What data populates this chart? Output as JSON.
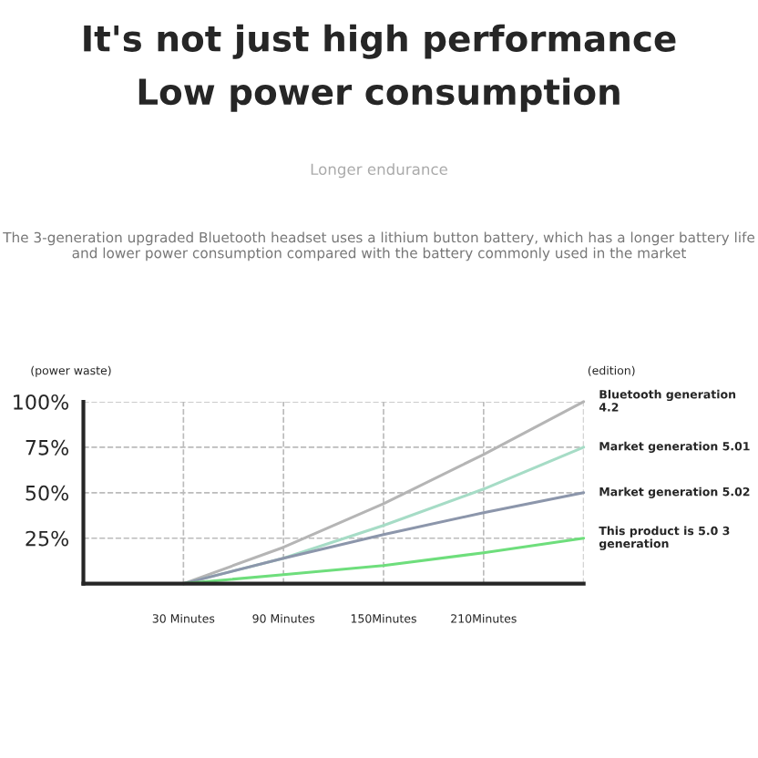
{
  "chart_data": {
    "type": "line",
    "title": "It's not just high performance",
    "subtitle": "Low power consumption",
    "ylabel": "(power waste)",
    "annotations": [
      "Longer endurance",
      "The 3-generation upgraded Bluetooth headset uses a lithium button battery, which has a longer battery life and lower power consumption compared with the battery commonly used in the market",
      "(edition)"
    ],
    "categories": [
      null,
      "30 Minutes",
      "90 Minutes",
      "150Minutes",
      "210Minutes",
      null
    ],
    "series": [
      {
        "name": "Bluetooth generation 4.2",
        "color": "#b5b5b5",
        "values": [
          null,
          0,
          20,
          44,
          71,
          100
        ]
      },
      {
        "name": "Market generation 5.01",
        "color": "#a6dcc6",
        "values": [
          null,
          0,
          14,
          32,
          52,
          75
        ]
      },
      {
        "name": "Market generation 5.02",
        "color": "#8c96ab",
        "values": [
          null,
          0,
          14,
          27,
          39,
          50
        ]
      },
      {
        "name": "This product is 5.0 3 generation",
        "color": "#6ede7c",
        "values": [
          null,
          0,
          5,
          10,
          17,
          25
        ]
      }
    ],
    "ylim": [
      0,
      100
    ],
    "yticks": [
      {
        "value": 25,
        "label": "25%"
      },
      {
        "value": 50,
        "label": "50%"
      },
      {
        "value": 75,
        "label": "75%"
      },
      {
        "value": 100,
        "label": "100%"
      }
    ],
    "grid": true,
    "legend": false
  }
}
